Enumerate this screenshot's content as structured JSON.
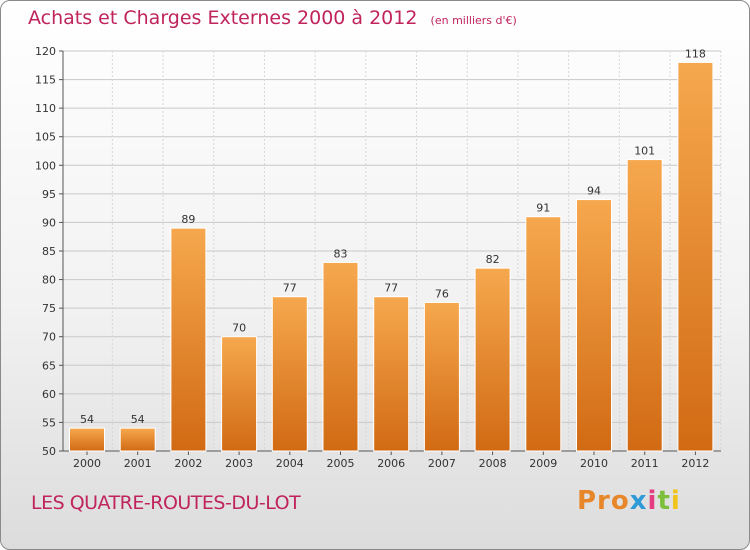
{
  "title": "Achats et Charges Externes 2000 à 2012",
  "unit_note": "(en milliers d'€)",
  "commune": "LES QUATRE-ROUTES-DU-LOT",
  "logo": {
    "p1": "Pro",
    "p2": "x",
    "p3": "i",
    "p4": "t",
    "p5": "i"
  },
  "colors": {
    "title": "#c0245c",
    "bar_light": "#f6a84e",
    "bar_dark": "#d16a13",
    "bar_edge": "#ffffff"
  },
  "chart_data": {
    "type": "bar",
    "categories": [
      "2000",
      "2001",
      "2002",
      "2003",
      "2004",
      "2005",
      "2006",
      "2007",
      "2008",
      "2009",
      "2010",
      "2011",
      "2012"
    ],
    "values": [
      54,
      54,
      89,
      70,
      77,
      83,
      77,
      76,
      82,
      91,
      94,
      101,
      118
    ],
    "value_labels": [
      "54",
      "54",
      "89",
      "70",
      "77",
      "83",
      "77",
      "76",
      "82",
      "91",
      "94",
      "101",
      "118"
    ],
    "yticks": [
      "50",
      "55",
      "60",
      "65",
      "70",
      "75",
      "80",
      "85",
      "90",
      "95",
      "100",
      "105",
      "110",
      "115",
      "120"
    ],
    "ylim": [
      50,
      120
    ],
    "grid": true,
    "legend": "none"
  }
}
